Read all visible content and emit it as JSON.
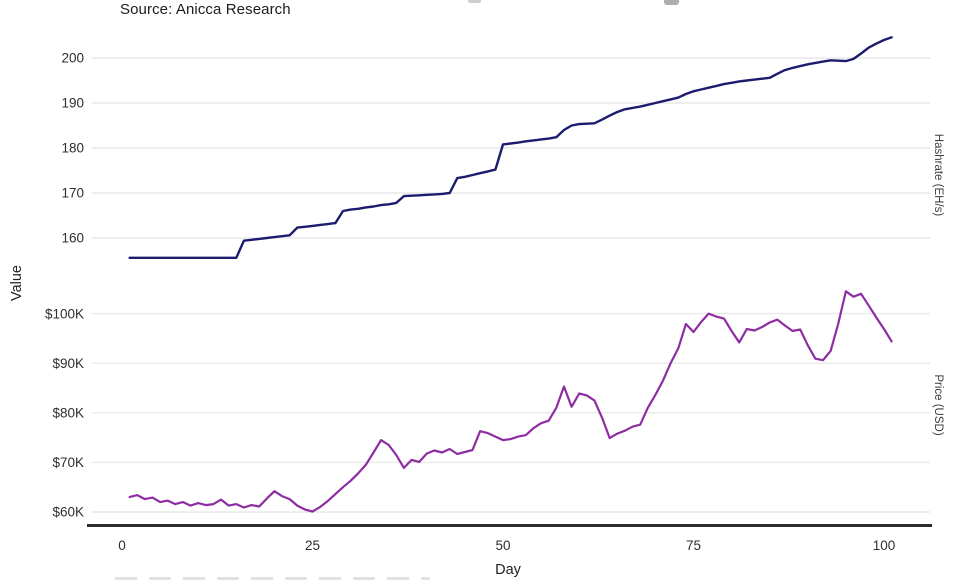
{
  "source_note": "Source: Anicca Research",
  "axes": {
    "x": {
      "label": "Day",
      "ticks": [
        0,
        25,
        50,
        75,
        100
      ],
      "range": [
        0,
        106
      ]
    },
    "left": {
      "label": "Value"
    },
    "top_panel": {
      "right_label": "Hashrate (EH/s)",
      "ticks": [
        160,
        170,
        180,
        190,
        200
      ],
      "range": [
        155,
        205
      ]
    },
    "bottom_panel": {
      "right_label": "Price (USD)",
      "tick_labels": [
        "$60K",
        "$70K",
        "$80K",
        "$90K",
        "$100K"
      ],
      "tick_values": [
        60,
        70,
        80,
        90,
        100
      ],
      "range": [
        59,
        105
      ]
    }
  },
  "colors": {
    "hashrate": "#1c1c6e",
    "price": "#8e2da1",
    "grid": "#e9e9e9",
    "axis": "#2d2d2d",
    "tick_text": "#2e2e2e"
  },
  "chart_data": [
    {
      "type": "line",
      "name": "Hashrate (EH/s)",
      "panel": "top",
      "color": "#1c1c6e",
      "day_start": 1,
      "ylim": [
        155,
        205
      ],
      "grid": true,
      "legend": "none",
      "values": [
        155.6,
        155.6,
        155.6,
        155.6,
        155.6,
        155.6,
        155.6,
        155.6,
        155.6,
        155.6,
        155.6,
        155.6,
        155.6,
        155.6,
        155.6,
        159.4,
        159.6,
        159.8,
        160.0,
        160.2,
        160.4,
        160.6,
        162.3,
        162.5,
        162.7,
        162.9,
        163.1,
        163.3,
        166.0,
        166.3,
        166.5,
        166.8,
        167.0,
        167.3,
        167.5,
        167.8,
        169.3,
        169.4,
        169.5,
        169.6,
        169.7,
        169.8,
        170.0,
        173.3,
        173.6,
        174.0,
        174.4,
        174.8,
        175.2,
        180.8,
        181.0,
        181.2,
        181.5,
        181.7,
        181.9,
        182.1,
        182.4,
        184.0,
        185.0,
        185.3,
        185.4,
        185.5,
        186.3,
        187.2,
        188.0,
        188.6,
        188.9,
        189.2,
        189.6,
        190.0,
        190.4,
        190.8,
        191.2,
        192.0,
        192.6,
        193.0,
        193.4,
        193.8,
        194.2,
        194.5,
        194.8,
        195.0,
        195.2,
        195.4,
        195.6,
        196.5,
        197.3,
        197.8,
        198.2,
        198.6,
        198.9,
        199.2,
        199.5,
        199.4,
        199.3,
        199.8,
        201.0,
        202.3,
        203.2,
        204.0,
        204.6
      ]
    },
    {
      "type": "line",
      "name": "Price (USD)",
      "panel": "bottom",
      "color": "#8e2da1",
      "day_start": 1,
      "unit": "thousand USD",
      "ylim": [
        59,
        105
      ],
      "grid": true,
      "legend": "none",
      "values": [
        63.0,
        63.4,
        62.6,
        62.9,
        62.0,
        62.3,
        61.6,
        62.0,
        61.3,
        61.8,
        61.4,
        61.6,
        62.5,
        61.3,
        61.6,
        60.9,
        61.4,
        61.1,
        62.7,
        64.2,
        63.2,
        62.6,
        61.3,
        60.5,
        60.1,
        61.0,
        62.2,
        63.6,
        65.0,
        66.3,
        67.8,
        69.5,
        72.0,
        74.5,
        73.5,
        71.5,
        68.9,
        70.5,
        70.1,
        71.8,
        72.4,
        72.0,
        72.7,
        71.7,
        72.1,
        72.5,
        76.3,
        75.9,
        75.2,
        74.5,
        74.7,
        75.2,
        75.5,
        76.9,
        77.9,
        78.4,
        81.0,
        85.3,
        81.2,
        83.9,
        83.5,
        82.5,
        79.0,
        74.9,
        75.8,
        76.4,
        77.2,
        77.6,
        81.0,
        83.6,
        86.5,
        90.0,
        93.0,
        97.9,
        96.3,
        98.3,
        100.0,
        99.4,
        99.0,
        96.5,
        94.2,
        96.9,
        96.6,
        97.3,
        98.2,
        98.8,
        97.6,
        96.5,
        96.8,
        93.6,
        90.9,
        90.6,
        92.5,
        98.0,
        104.5,
        103.4,
        104.0,
        101.6,
        99.2,
        96.9,
        94.4
      ]
    }
  ]
}
